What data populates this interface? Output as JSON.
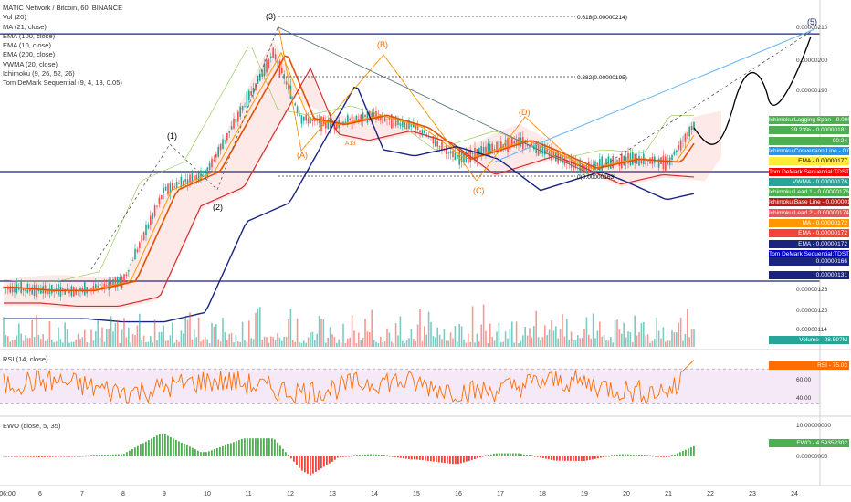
{
  "header": {
    "symbol_line": "MATIC Network / Bitcoin, 60, BINANCE",
    "indicators": [
      "Vol (20)",
      "MA (21, close)",
      "EMA (100, close)",
      "EMA (10, close)",
      "EMA (200, close)",
      "VWMA (20, close)",
      "Ichimoku (9, 26, 52, 26)",
      "Tom DeMark Sequential (9, 4, 13, 0.05)"
    ]
  },
  "price_axis": [
    "0.00000210",
    "0.00000200",
    "0.00000190",
    "0.00000126",
    "0.00000120",
    "0.00000114"
  ],
  "price_tags": [
    {
      "text": "Ichimoku:Lagging Span - 0.00000181",
      "color": "#4caf50"
    },
    {
      "text": "39.23% - 0.00000181",
      "color": "#4caf50"
    },
    {
      "text": "00:24",
      "color": "#4caf50"
    },
    {
      "text": "Ichimoku:Conversion Line - 0.00000178",
      "color": "#2196f3"
    },
    {
      "text": "EMA - 0.00000177",
      "color": "#ffeb3b"
    },
    {
      "text": "Tom DeMark Sequential:TDST Resistance - 0.00000177",
      "color": "#ff0000"
    },
    {
      "text": "VWMA - 0.00000176",
      "color": "#26a69a"
    },
    {
      "text": "Ichimoku:Lead 1 - 0.00000176",
      "color": "#4caf50"
    },
    {
      "text": "Ichimoku:Base Line - 0.00000174",
      "color": "#b71c1c"
    },
    {
      "text": "Ichimoku:Lead 2 - 0.00000174",
      "color": "#ef5350"
    },
    {
      "text": "MA - 0.00000172",
      "color": "#ff9800"
    },
    {
      "text": "EMA - 0.00000172",
      "color": "#f44336"
    },
    {
      "text": "EMA - 0.00000172",
      "color": "#1a237e"
    },
    {
      "text": "Tom DeMark Sequential:TDST Support - 0.00000171",
      "color": "#0000cc"
    },
    {
      "text": "0.00000166",
      "color": "#1a237e"
    },
    {
      "text": "0.00000131",
      "color": "#1a237e"
    },
    {
      "text": "Volume - 28.597M",
      "color": "#26a69a"
    }
  ],
  "annotations": {
    "fib_618": "0.618(0.00000214)",
    "fib_382": "0.382(0.00000195)",
    "fib_low": "0(0.00000163)",
    "wave_1": "(1)",
    "wave_2": "(2)",
    "wave_3": "(3)",
    "wave_5": "(5)",
    "wave_a": "(A)",
    "wave_b": "(B)",
    "wave_c": "(C)",
    "wave_d": "(D)",
    "td_count": "A13"
  },
  "rsi": {
    "title": "RSI (14, close)",
    "tag": "RSI - 75.03",
    "levels": [
      "60.00",
      "40.00"
    ],
    "tag_color": "#ff6d00"
  },
  "ewo": {
    "title": "EWO (close, 5, 35)",
    "tag": "EWO - 4.59352302",
    "levels": [
      "10.00000000",
      "0.00000000"
    ],
    "tag_color": "#4caf50"
  },
  "time_axis": [
    "06:00",
    "6",
    "7",
    "8",
    "9",
    "10",
    "11",
    "12",
    "13",
    "14",
    "15",
    "16",
    "17",
    "18",
    "19",
    "20",
    "21",
    "22",
    "23",
    "24"
  ],
  "chart_data": [
    {
      "type": "line",
      "title": "MATIC Network / Bitcoin, 60, BINANCE",
      "x": [
        "06:00",
        "6",
        "7",
        "8",
        "9",
        "10",
        "11",
        "12",
        "13",
        "14",
        "15",
        "16",
        "17",
        "18",
        "19",
        "20",
        "21",
        "21.5"
      ],
      "series": [
        {
          "name": "close",
          "values": [
            1.29,
            1.28,
            1.28,
            1.31,
            1.6,
            1.66,
            2.04,
            1.83,
            1.81,
            1.84,
            1.8,
            1.7,
            1.76,
            1.73,
            1.67,
            1.7,
            1.69,
            1.81
          ]
        }
      ],
      "ylabel": "",
      "ylim": [
        1.1,
        2.15
      ],
      "y_unit": "0.000001 BTC",
      "horizontal_levels": [
        2.1,
        1.66,
        1.31
      ]
    },
    {
      "type": "line",
      "title": "RSI (14, close)",
      "ylim": [
        20,
        90
      ],
      "levels": [
        60,
        40
      ],
      "last": 75.03
    },
    {
      "type": "bar",
      "title": "EWO (close, 5, 35)",
      "ylim": [
        -6,
        12
      ],
      "last": 4.59352302
    }
  ]
}
